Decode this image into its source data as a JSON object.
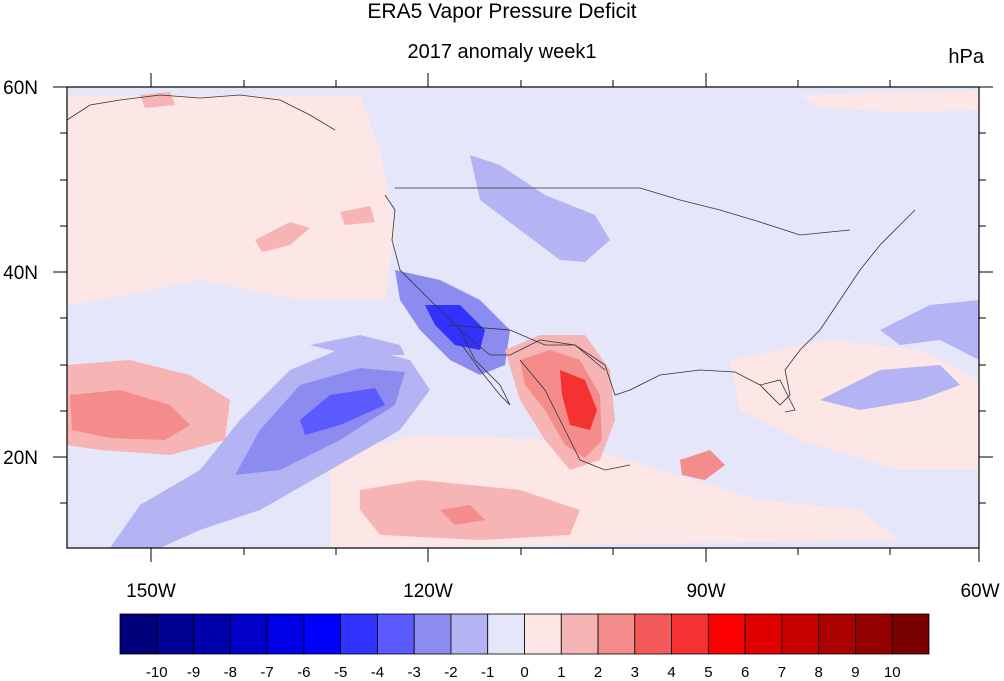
{
  "title": "ERA5 Vapor Pressure Deficit",
  "subtitle": "2017 anomaly week1",
  "units": "hPa",
  "axes": {
    "lat_labels": [
      "60N",
      "40N",
      "20N"
    ],
    "lon_labels": [
      "150W",
      "120W",
      "90W",
      "60W"
    ]
  },
  "colorbar": {
    "labels": [
      "-10",
      "-9",
      "-8",
      "-7",
      "-6",
      "-5",
      "-4",
      "-3",
      "-2",
      "-1",
      "0",
      "1",
      "2",
      "3",
      "4",
      "5",
      "6",
      "7",
      "8",
      "9",
      "10"
    ],
    "colors": [
      "#00007a",
      "#000092",
      "#0000aa",
      "#0000c8",
      "#0000e6",
      "#0000ff",
      "#3232ff",
      "#5a5aff",
      "#8c8cf0",
      "#b4b4f5",
      "#e6e6fa",
      "#fde6e6",
      "#f7b4b4",
      "#f58c8c",
      "#f55a5a",
      "#f53232",
      "#ff0000",
      "#e00000",
      "#c80000",
      "#aa0000",
      "#920000",
      "#7a0000"
    ]
  },
  "map": {
    "projection": "cylindrical-equidistant",
    "lon_range": [
      -159,
      -60
    ],
    "lat_range": [
      10,
      60
    ],
    "background_color": "#e6e6fa",
    "anomaly_regions": [
      {
        "name": "pacific-positive-west",
        "color": "#f58c8c"
      },
      {
        "name": "pacific-negative-band",
        "color": "#5a5aff"
      },
      {
        "name": "mexico-positive-core",
        "color": "#f53232"
      },
      {
        "name": "southwest-negative",
        "color": "#3232ff"
      }
    ]
  }
}
